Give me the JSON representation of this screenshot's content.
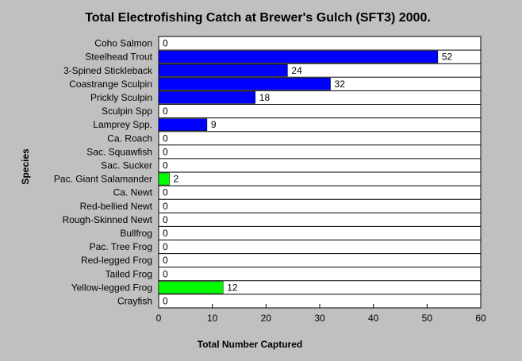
{
  "chart_data": {
    "type": "bar",
    "orientation": "horizontal",
    "title": "Total Electrofishing Catch at Brewer's Gulch (SFT3) 2000.",
    "xlabel": "Total Number Captured",
    "ylabel": "Species",
    "xlim": [
      0,
      60
    ],
    "xticks": [
      0,
      10,
      20,
      30,
      40,
      50,
      60
    ],
    "grid": "horizontal",
    "legend": "none",
    "categories": [
      "Coho Salmon",
      "Steelhead Trout",
      "3-Spined Stickleback",
      "Coastrange Sculpin",
      "Prickly Sculpin",
      "Sculpin Spp",
      "Lamprey Spp.",
      "Ca. Roach",
      "Sac. Squawfish",
      "Sac. Sucker",
      "Pac. Giant Salamander",
      "Ca. Newt",
      "Red-bellied Newt",
      "Rough-Skinned Newt",
      "Bullfrog",
      "Pac. Tree Frog",
      "Red-legged Frog",
      "Tailed Frog",
      "Yellow-legged Frog",
      "Crayfish"
    ],
    "values": [
      0,
      52,
      24,
      32,
      18,
      0,
      9,
      0,
      0,
      0,
      2,
      0,
      0,
      0,
      0,
      0,
      0,
      0,
      12,
      0
    ],
    "bar_colors": [
      "#0000ff",
      "#0000ff",
      "#0000ff",
      "#0000ff",
      "#0000ff",
      "#0000ff",
      "#0000ff",
      "#0000ff",
      "#0000ff",
      "#0000ff",
      "#00ff00",
      "#00ff00",
      "#00ff00",
      "#00ff00",
      "#00ff00",
      "#00ff00",
      "#00ff00",
      "#00ff00",
      "#00ff00",
      "#00ff00"
    ]
  },
  "colors": {
    "background": "#c0c0c0",
    "plot_background": "#ffffff",
    "fish": "#0000ff",
    "amphibian": "#00ff00"
  }
}
